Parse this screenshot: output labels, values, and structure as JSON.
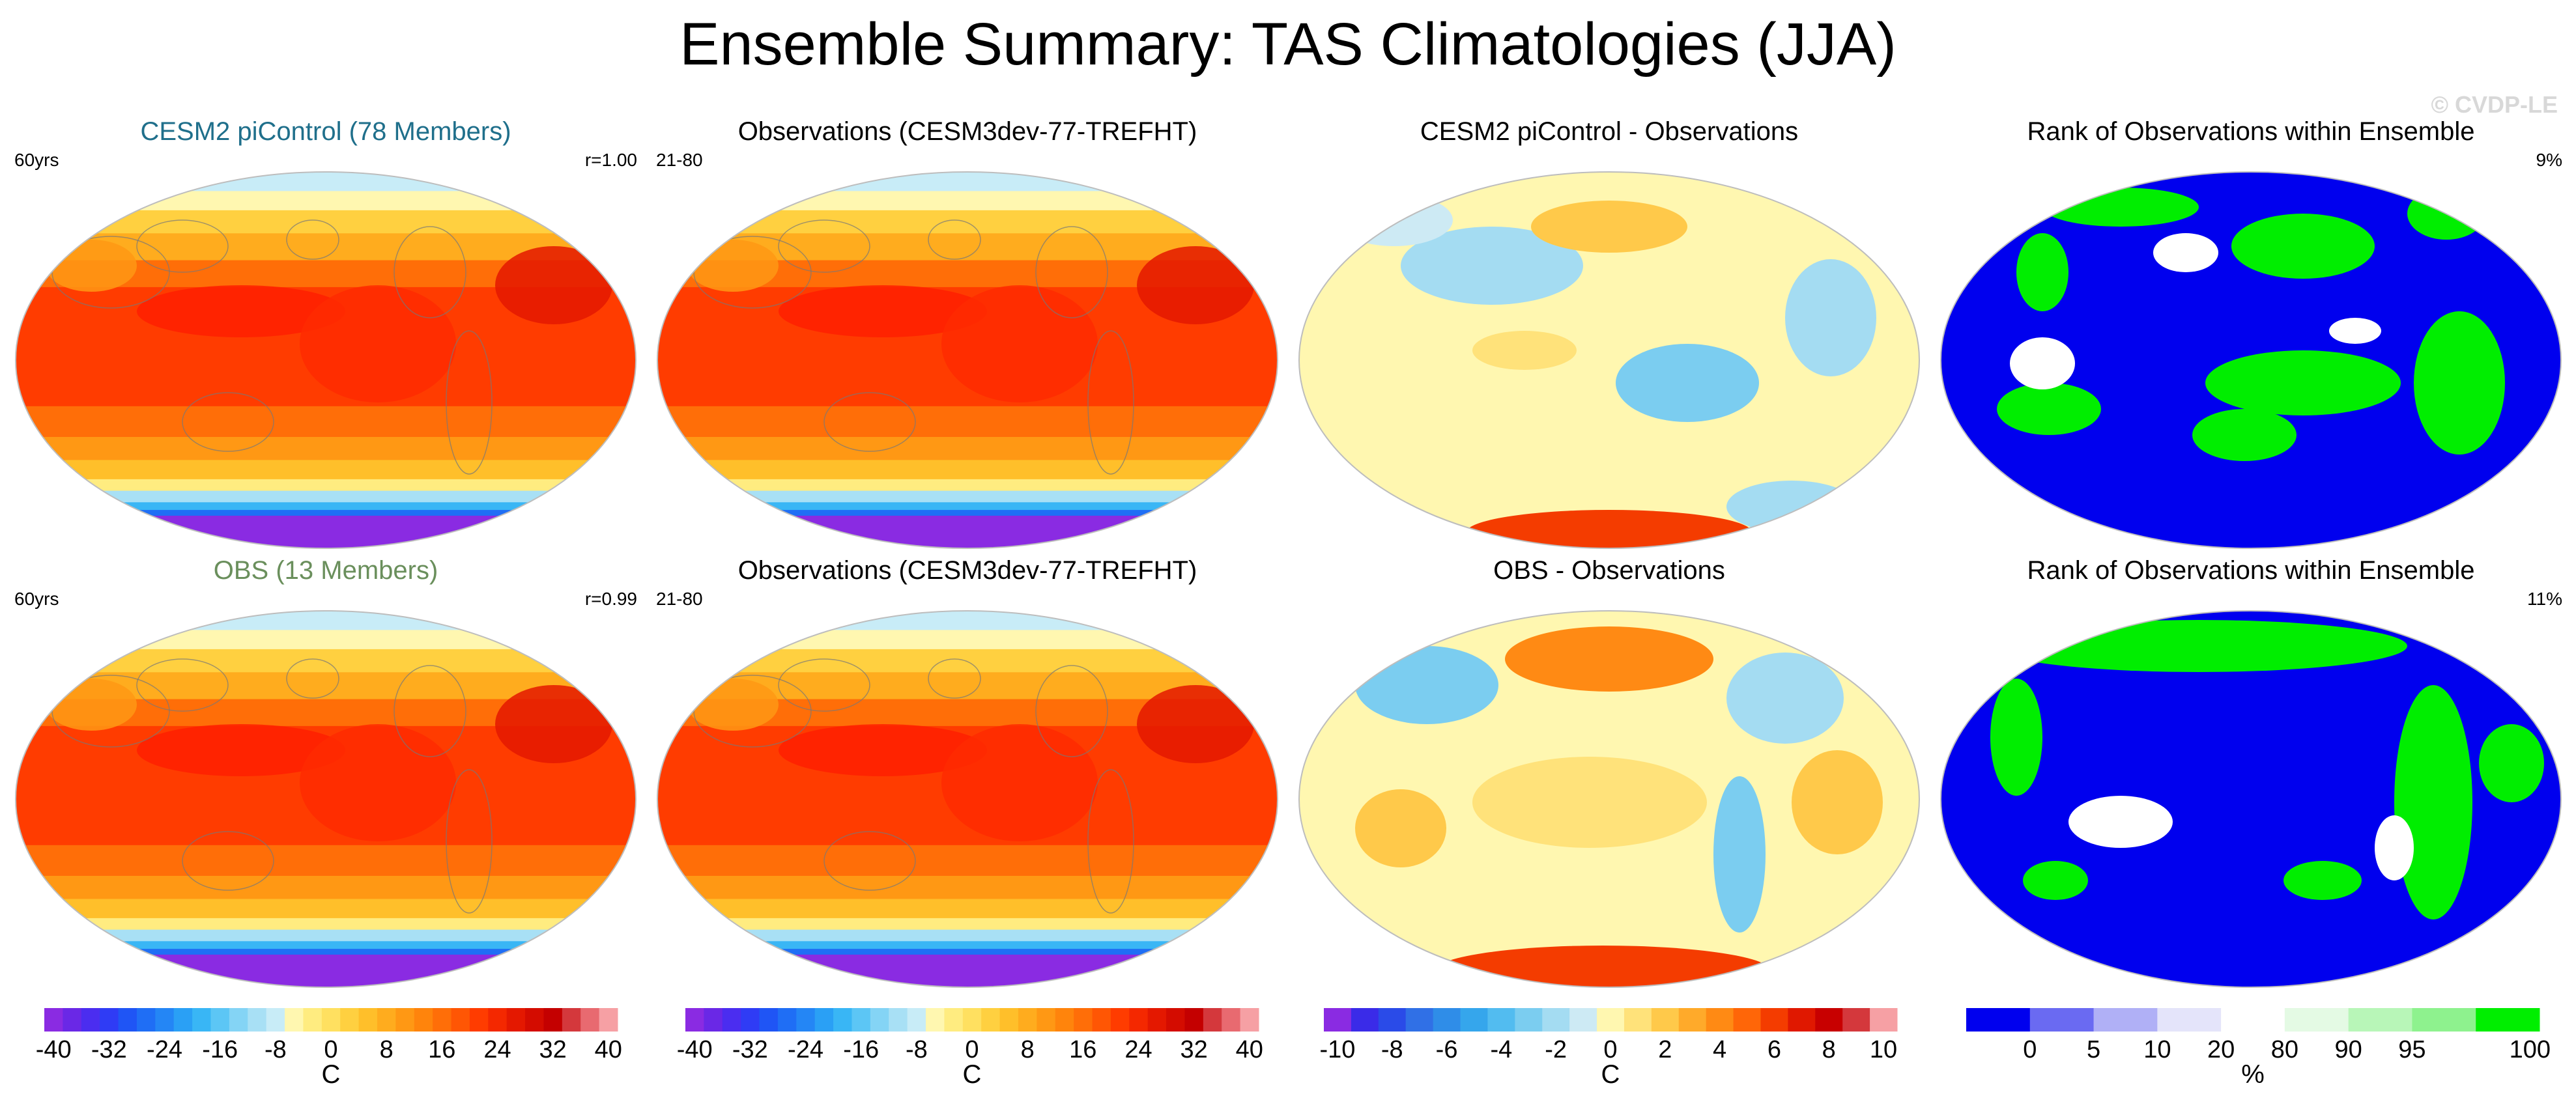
{
  "title": "Ensemble Summary: TAS Climatologies (JJA)",
  "watermark": "© CVDP-LE",
  "colors": {
    "cesm_title": "#1f6f8b",
    "obs_title": "#6a8f5c",
    "ocean_stroke": "#bdbdbd",
    "rank_blue": "#0000ee",
    "rank_green": "#00ee00"
  },
  "panels": [
    {
      "title": "CESM2 piControl (78 Members)",
      "title_color": "#1f6f8b",
      "left_note": "60yrs",
      "right_note": "r=1.00",
      "kind": "clim"
    },
    {
      "title": "Observations (CESM3dev-77-TREFHT)",
      "title_color": "#000000",
      "left_note": "21-80",
      "right_note": "",
      "kind": "clim"
    },
    {
      "title": "CESM2 piControl - Observations",
      "title_color": "#000000",
      "left_note": "",
      "right_note": "",
      "kind": "diff"
    },
    {
      "title": "Rank of Observations within Ensemble",
      "title_color": "#000000",
      "left_note": "",
      "right_note": "9%",
      "kind": "rank"
    },
    {
      "title": "OBS (13 Members)",
      "title_color": "#6a8f5c",
      "left_note": "60yrs",
      "right_note": "r=0.99",
      "kind": "clim"
    },
    {
      "title": "Observations (CESM3dev-77-TREFHT)",
      "title_color": "#000000",
      "left_note": "21-80",
      "right_note": "",
      "kind": "clim"
    },
    {
      "title": "OBS - Observations",
      "title_color": "#000000",
      "left_note": "",
      "right_note": "",
      "kind": "diff2"
    },
    {
      "title": "Rank of Observations within Ensemble",
      "title_color": "#000000",
      "left_note": "",
      "right_note": "11%",
      "kind": "rank2"
    }
  ],
  "colorbars": [
    {
      "unit": "C",
      "colors": [
        "#8a2be2",
        "#6a28e6",
        "#4b2df0",
        "#2f3cf5",
        "#1f55f5",
        "#1f6ef5",
        "#2486f5",
        "#2aa0f5",
        "#39b6f5",
        "#5cc6f5",
        "#84d4f5",
        "#a8e0f5",
        "#c8ecf7",
        "#fff7b0",
        "#ffec80",
        "#ffe060",
        "#ffd040",
        "#ffbf2a",
        "#ffac1e",
        "#ff9814",
        "#ff840c",
        "#ff6e08",
        "#ff5604",
        "#ff3c00",
        "#f42800",
        "#e41800",
        "#d40c00",
        "#c40000",
        "#d4383c",
        "#e86a70",
        "#f6a0a4"
      ],
      "labels": [
        "-40",
        "-32",
        "-24",
        "-16",
        "-8",
        "0",
        "8",
        "16",
        "24",
        "32",
        "40"
      ]
    },
    {
      "unit": "C",
      "colors": [
        "#8a2be2",
        "#6a28e6",
        "#4b2df0",
        "#2f3cf5",
        "#1f55f5",
        "#1f6ef5",
        "#2486f5",
        "#2aa0f5",
        "#39b6f5",
        "#5cc6f5",
        "#84d4f5",
        "#a8e0f5",
        "#c8ecf7",
        "#fff7b0",
        "#ffec80",
        "#ffe060",
        "#ffd040",
        "#ffbf2a",
        "#ffac1e",
        "#ff9814",
        "#ff840c",
        "#ff6e08",
        "#ff5604",
        "#ff3c00",
        "#f42800",
        "#e41800",
        "#d40c00",
        "#c40000",
        "#d4383c",
        "#e86a70",
        "#f6a0a4"
      ],
      "labels": [
        "-40",
        "-32",
        "-24",
        "-16",
        "-8",
        "0",
        "8",
        "16",
        "24",
        "32",
        "40"
      ]
    },
    {
      "unit": "C",
      "colors": [
        "#8a2be2",
        "#3a2be8",
        "#2a4be8",
        "#3070e6",
        "#2f8de8",
        "#35a6ec",
        "#52bcf0",
        "#7bcdf0",
        "#a4dcf2",
        "#cdeaf4",
        "#fff7b0",
        "#ffe27a",
        "#ffc94a",
        "#ffaa2a",
        "#ff8a14",
        "#ff6608",
        "#f43c00",
        "#e01800",
        "#c80000",
        "#d4383c",
        "#f6a0a4"
      ],
      "labels": [
        "-10",
        "-8",
        "-6",
        "-4",
        "-2",
        "0",
        "2",
        "4",
        "6",
        "8",
        "10"
      ]
    },
    {
      "unit": "%",
      "colors": [
        "#0000ee",
        "#6a6af2",
        "#b0b0f6",
        "#e4e4fa",
        "#ffffff",
        "#e4fae4",
        "#b8f6b8",
        "#8ef28e",
        "#00ee00"
      ],
      "labels": [
        "0",
        "5",
        "10",
        "20",
        "80",
        "90",
        "95",
        "100"
      ]
    }
  ],
  "chart_data": [
    {
      "type": "heatmap",
      "title": "CESM2 piControl (78 Members)",
      "projection": "robinson",
      "variable": "TAS",
      "season": "JJA",
      "units": "C",
      "range": [
        -40,
        40
      ],
      "annotations": [
        "60yrs",
        "r=1.00"
      ]
    },
    {
      "type": "heatmap",
      "title": "Observations (CESM3dev-77-TREFHT)",
      "projection": "robinson",
      "variable": "TAS",
      "season": "JJA",
      "units": "C",
      "range": [
        -40,
        40
      ],
      "annotations": [
        "21-80"
      ]
    },
    {
      "type": "heatmap",
      "title": "CESM2 piControl - Observations",
      "projection": "robinson",
      "units": "C",
      "range": [
        -10,
        10
      ]
    },
    {
      "type": "heatmap",
      "title": "Rank of Observations within Ensemble",
      "projection": "robinson",
      "units": "%",
      "levels": [
        0,
        5,
        10,
        20,
        80,
        90,
        95,
        100
      ],
      "annotations": [
        "9%"
      ]
    },
    {
      "type": "heatmap",
      "title": "OBS (13 Members)",
      "projection": "robinson",
      "variable": "TAS",
      "season": "JJA",
      "units": "C",
      "range": [
        -40,
        40
      ],
      "annotations": [
        "60yrs",
        "r=0.99"
      ]
    },
    {
      "type": "heatmap",
      "title": "Observations (CESM3dev-77-TREFHT)",
      "projection": "robinson",
      "variable": "TAS",
      "season": "JJA",
      "units": "C",
      "range": [
        -40,
        40
      ],
      "annotations": [
        "21-80"
      ]
    },
    {
      "type": "heatmap",
      "title": "OBS - Observations",
      "projection": "robinson",
      "units": "C",
      "range": [
        -10,
        10
      ]
    },
    {
      "type": "heatmap",
      "title": "Rank of Observations within Ensemble",
      "projection": "robinson",
      "units": "%",
      "levels": [
        0,
        5,
        10,
        20,
        80,
        90,
        95,
        100
      ],
      "annotations": [
        "11%"
      ]
    }
  ]
}
